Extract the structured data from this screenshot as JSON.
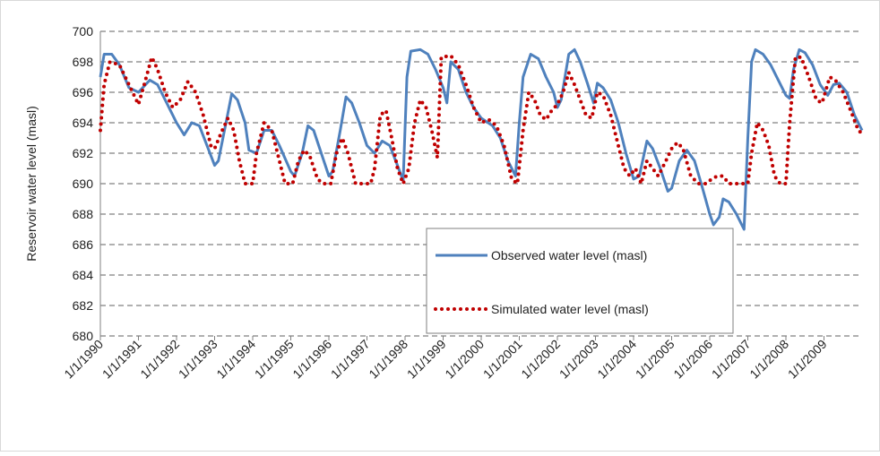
{
  "chart_data": {
    "type": "line",
    "ylabel": "Reservoir  water level  (masl)",
    "xlim": [
      1990,
      2010
    ],
    "xticks": [
      {
        "value": 1990,
        "label": "1/1/1990"
      },
      {
        "value": 1991,
        "label": "1/1/1991"
      },
      {
        "value": 1992,
        "label": "1/1/1992"
      },
      {
        "value": 1993,
        "label": "1/1/1993"
      },
      {
        "value": 1994,
        "label": "1/1/1994"
      },
      {
        "value": 1995,
        "label": "1/1/1995"
      },
      {
        "value": 1996,
        "label": "1/1/1996"
      },
      {
        "value": 1997,
        "label": "1/1/1997"
      },
      {
        "value": 1998,
        "label": "1/1/1998"
      },
      {
        "value": 1999,
        "label": "1/1/1999"
      },
      {
        "value": 2000,
        "label": "1/1/2000"
      },
      {
        "value": 2001,
        "label": "1/1/2001"
      },
      {
        "value": 2002,
        "label": "1/1/2002"
      },
      {
        "value": 2003,
        "label": "1/1/2003"
      },
      {
        "value": 2004,
        "label": "1/1/2004"
      },
      {
        "value": 2005,
        "label": "1/1/2005"
      },
      {
        "value": 2006,
        "label": "1/1/2006"
      },
      {
        "value": 2007,
        "label": "1/1/2007"
      },
      {
        "value": 2008,
        "label": "1/1/2008"
      },
      {
        "value": 2009,
        "label": "1/1/2009"
      }
    ],
    "ylim": [
      680,
      700
    ],
    "yticks": [
      680,
      682,
      684,
      686,
      688,
      690,
      692,
      694,
      696,
      698,
      700
    ],
    "grid": true,
    "series": [
      {
        "name": "Observed water level (masl)",
        "color": "#4f81bd",
        "style": "solid",
        "x": [
          1990.0,
          1990.1,
          1990.3,
          1990.5,
          1990.75,
          1991.0,
          1991.3,
          1991.5,
          1991.7,
          1992.0,
          1992.2,
          1992.4,
          1992.6,
          1992.8,
          1993.0,
          1993.1,
          1993.3,
          1993.45,
          1993.6,
          1993.8,
          1993.9,
          1994.1,
          1994.3,
          1994.5,
          1994.7,
          1995.0,
          1995.1,
          1995.3,
          1995.45,
          1995.6,
          1995.8,
          1996.0,
          1996.1,
          1996.3,
          1996.45,
          1996.6,
          1996.8,
          1997.0,
          1997.2,
          1997.4,
          1997.6,
          1997.8,
          1997.95,
          1998.05,
          1998.15,
          1998.4,
          1998.6,
          1998.8,
          1999.0,
          1999.1,
          1999.2,
          1999.4,
          1999.6,
          1999.8,
          2000.0,
          2000.3,
          2000.5,
          2000.7,
          2000.9,
          2001.0,
          2001.1,
          2001.3,
          2001.5,
          2001.7,
          2001.9,
          2002.0,
          2002.1,
          2002.3,
          2002.45,
          2002.6,
          2002.8,
          2002.95,
          2003.05,
          2003.2,
          2003.4,
          2003.6,
          2003.8,
          2004.0,
          2004.15,
          2004.35,
          2004.5,
          2004.7,
          2004.9,
          2005.0,
          2005.2,
          2005.4,
          2005.6,
          2005.8,
          2006.0,
          2006.1,
          2006.25,
          2006.35,
          2006.5,
          2006.7,
          2006.9,
          2007.0,
          2007.1,
          2007.2,
          2007.4,
          2007.6,
          2007.8,
          2008.0,
          2008.1,
          2008.2,
          2008.35,
          2008.5,
          2008.7,
          2008.9,
          2009.1,
          2009.25,
          2009.4,
          2009.6,
          2009.8,
          2010.0
        ],
        "values": [
          697,
          698.5,
          698.5,
          697.8,
          696.3,
          696,
          696.8,
          696.5,
          695.5,
          694,
          693.2,
          694,
          693.8,
          692.5,
          691.2,
          691.5,
          694,
          695.9,
          695.5,
          694,
          692.2,
          692,
          693.5,
          693.5,
          692.5,
          690.8,
          690.5,
          692,
          693.8,
          693.5,
          692,
          690.5,
          690.8,
          693.5,
          695.7,
          695.3,
          694,
          692.5,
          692,
          692.8,
          692.5,
          691.2,
          690.2,
          697,
          698.7,
          698.8,
          698.5,
          697.5,
          696.3,
          695.3,
          698,
          697.5,
          696,
          695,
          694.3,
          693.8,
          693,
          691.5,
          690.5,
          694,
          697,
          698.5,
          698.2,
          697,
          696,
          695,
          695.5,
          698.5,
          698.8,
          698,
          696.5,
          695.3,
          696.6,
          696.3,
          695.5,
          694,
          692,
          690.3,
          690.5,
          692.8,
          692.3,
          691,
          689.5,
          689.7,
          691.5,
          692.2,
          691.5,
          689.8,
          688,
          687.3,
          687.8,
          689,
          688.8,
          688,
          687,
          693,
          698,
          698.8,
          698.5,
          697.8,
          696.8,
          695.8,
          695.6,
          697.5,
          698.8,
          698.6,
          697.8,
          696.5,
          695.8,
          696.5,
          696.6,
          696,
          694.5,
          693.5
        ]
      },
      {
        "name": "Simulated water level (masl)",
        "color": "#c00000",
        "style": "dotted",
        "x": [
          1990.0,
          1990.1,
          1990.25,
          1990.5,
          1990.75,
          1991.0,
          1991.15,
          1991.35,
          1991.5,
          1991.7,
          1991.9,
          1992.1,
          1992.3,
          1992.5,
          1992.7,
          1992.9,
          1993.0,
          1993.2,
          1993.35,
          1993.5,
          1993.65,
          1993.8,
          1994.0,
          1994.1,
          1994.3,
          1994.5,
          1994.7,
          1994.85,
          1995.05,
          1995.2,
          1995.35,
          1995.5,
          1995.7,
          1995.85,
          1996.05,
          1996.2,
          1996.35,
          1996.5,
          1996.7,
          1996.9,
          1997.1,
          1997.2,
          1997.35,
          1997.5,
          1997.65,
          1997.8,
          1997.95,
          1998.1,
          1998.25,
          1998.4,
          1998.55,
          1998.7,
          1998.85,
          1998.95,
          1999.2,
          1999.4,
          1999.6,
          1999.8,
          2000.0,
          2000.2,
          2000.4,
          2000.6,
          2000.8,
          2000.95,
          2001.1,
          2001.25,
          2001.4,
          2001.55,
          2001.7,
          2001.85,
          2002.0,
          2002.15,
          2002.3,
          2002.45,
          2002.6,
          2002.75,
          2002.9,
          2003.05,
          2003.2,
          2003.4,
          2003.6,
          2003.75,
          2003.9,
          2004.05,
          2004.2,
          2004.35,
          2004.5,
          2004.65,
          2004.85,
          2005.0,
          2005.15,
          2005.3,
          2005.5,
          2005.7,
          2005.9,
          2006.05,
          2006.2,
          2006.35,
          2006.5,
          2006.7,
          2006.9,
          2007.0,
          2007.1,
          2007.25,
          2007.4,
          2007.55,
          2007.7,
          2007.85,
          2008.0,
          2008.1,
          2008.25,
          2008.4,
          2008.6,
          2008.8,
          2008.95,
          2009.15,
          2009.3,
          2009.5,
          2009.7,
          2009.9,
          2010.0
        ],
        "values": [
          693.5,
          696.5,
          698,
          697.8,
          696.5,
          695.2,
          696.5,
          698.3,
          697.5,
          696,
          695,
          695.5,
          696.7,
          696,
          694.5,
          692.5,
          692.3,
          693.5,
          694.3,
          693.5,
          691.5,
          690,
          690,
          692,
          694,
          693.5,
          691.5,
          690,
          690,
          691.5,
          692.2,
          691.8,
          690.3,
          690,
          690,
          692,
          693,
          692,
          690,
          690,
          690,
          691,
          694.5,
          694.8,
          693,
          691,
          690,
          691,
          694,
          695.5,
          695,
          693.5,
          691.7,
          698.3,
          698.4,
          697.8,
          696.5,
          695,
          694,
          694.2,
          693.8,
          692.5,
          690.3,
          690,
          693.5,
          696,
          695.5,
          694.5,
          694.2,
          694.8,
          695.2,
          696,
          697.3,
          696.5,
          695.5,
          694.5,
          694.3,
          696,
          695.8,
          694.5,
          692.5,
          691,
          690.5,
          691,
          690,
          691.5,
          691,
          690.5,
          691.5,
          692.3,
          692.7,
          692.3,
          690.5,
          690,
          690,
          690.3,
          690.5,
          690.5,
          690,
          690,
          690,
          690,
          692,
          694,
          693.5,
          692.5,
          690.5,
          690,
          690,
          694,
          698.3,
          698.3,
          697,
          695.5,
          695.3,
          697,
          696.8,
          696,
          694.8,
          693.5,
          693.3
        ]
      }
    ]
  }
}
